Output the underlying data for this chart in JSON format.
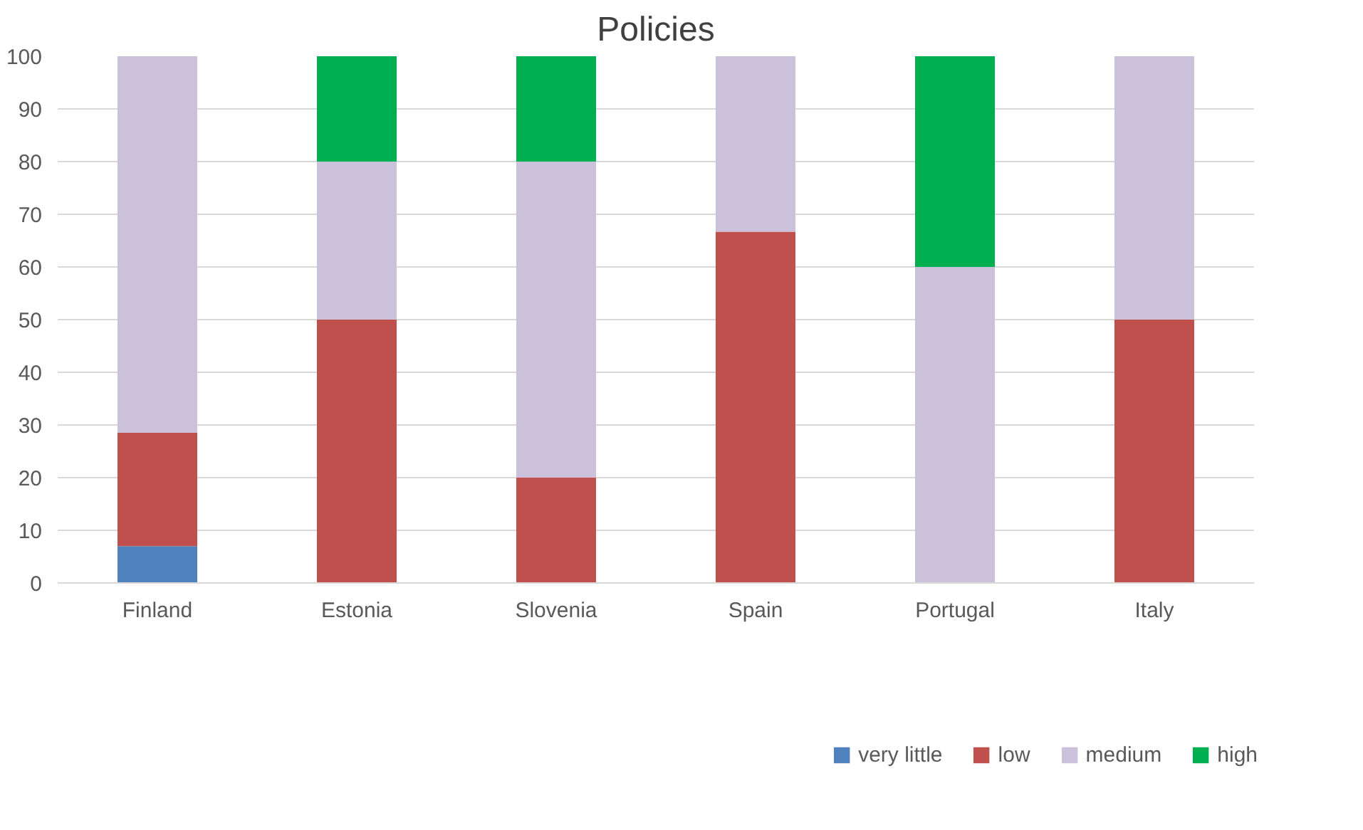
{
  "chart_data": {
    "type": "bar",
    "title": "Policies",
    "stacked": true,
    "categories": [
      "Finland",
      "Estonia",
      "Slovenia",
      "Spain",
      "Portugal",
      "Italy"
    ],
    "series": [
      {
        "name": "very little",
        "color": "#4f81bd",
        "values": [
          7,
          0,
          0,
          0,
          0,
          0
        ]
      },
      {
        "name": "low",
        "color": "#c0504d",
        "values": [
          21.5,
          50,
          20,
          66.7,
          0,
          50
        ]
      },
      {
        "name": "medium",
        "color": "#ccc1da",
        "values": [
          71.5,
          30,
          60,
          33.3,
          60,
          50
        ]
      },
      {
        "name": "high",
        "color": "#00b050",
        "values": [
          0,
          20,
          20,
          0,
          40,
          0
        ]
      }
    ],
    "ylim": [
      0,
      100
    ],
    "yticks": [
      0,
      10,
      20,
      30,
      40,
      50,
      60,
      70,
      80,
      90,
      100
    ],
    "grid": "y",
    "legend": "bottom"
  }
}
